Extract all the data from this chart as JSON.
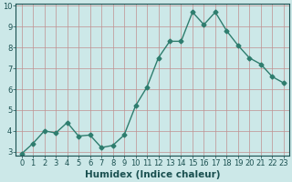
{
  "x": [
    0,
    1,
    2,
    3,
    4,
    5,
    6,
    7,
    8,
    9,
    10,
    11,
    12,
    13,
    14,
    15,
    16,
    17,
    18,
    19,
    20,
    21,
    22,
    23
  ],
  "y": [
    2.9,
    3.4,
    4.0,
    3.9,
    4.4,
    3.75,
    3.8,
    3.2,
    3.3,
    3.8,
    5.2,
    6.1,
    7.5,
    8.3,
    8.3,
    9.7,
    9.1,
    9.7,
    8.8,
    8.1,
    7.5,
    7.2,
    6.6,
    6.3
  ],
  "line_color": "#2e7d6e",
  "marker": "D",
  "marker_size": 2.5,
  "bg_color": "#cce8e8",
  "grid_color": "#c09090",
  "axis_label_color": "#1a5050",
  "tick_color": "#1a5050",
  "xlabel": "Humidex (Indice chaleur)",
  "ylim": [
    2.8,
    10.1
  ],
  "xlim": [
    -0.5,
    23.5
  ],
  "yticks": [
    3,
    4,
    5,
    6,
    7,
    8,
    9,
    10
  ],
  "xticks": [
    0,
    1,
    2,
    3,
    4,
    5,
    6,
    7,
    8,
    9,
    10,
    11,
    12,
    13,
    14,
    15,
    16,
    17,
    18,
    19,
    20,
    21,
    22,
    23
  ],
  "linewidth": 1.0,
  "xlabel_fontsize": 7.5,
  "tick_fontsize": 6.0
}
